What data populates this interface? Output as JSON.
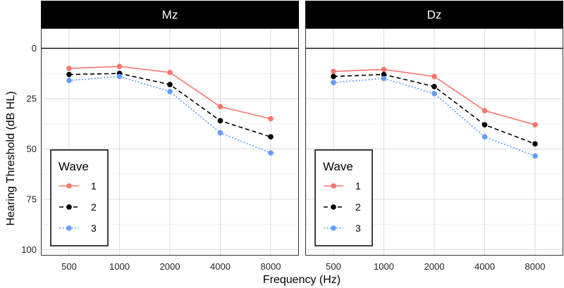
{
  "chart_data": {
    "type": "line",
    "xlabel": "Frequency (Hz)",
    "ylabel": "Hearing Threshold (dB HL)",
    "categories": [
      "500",
      "1000",
      "2000",
      "4000",
      "8000"
    ],
    "y_ticks": [
      0,
      25,
      50,
      75,
      100
    ],
    "y_tick_labels": [
      "0",
      "25",
      "50",
      "75",
      "100"
    ],
    "ylim": [
      -10,
      103
    ],
    "y_reversed": true,
    "reference_line": 0,
    "legend": {
      "title": "Wave",
      "placement": "bottom-left",
      "entries": [
        {
          "label": "1",
          "color": "#F8766D",
          "dash": "solid"
        },
        {
          "label": "2",
          "color": "#000000",
          "dash": "dashed"
        },
        {
          "label": "3",
          "color": "#619CFF",
          "dash": "dotted"
        }
      ]
    },
    "panels": [
      {
        "title": "Mz",
        "series": [
          {
            "name": "1",
            "values": [
              10,
              9,
              12,
              29,
              35
            ]
          },
          {
            "name": "2",
            "values": [
              13,
              12.5,
              18,
              36,
              44
            ]
          },
          {
            "name": "3",
            "values": [
              16,
              14,
              21.5,
              42,
              52
            ]
          }
        ]
      },
      {
        "title": "Dz",
        "series": [
          {
            "name": "1",
            "values": [
              11.5,
              10.5,
              14,
              31,
              38
            ]
          },
          {
            "name": "2",
            "values": [
              14,
              13,
              19,
              38,
              47.5
            ]
          },
          {
            "name": "3",
            "values": [
              17,
              15,
              22.5,
              44,
              53.5
            ]
          }
        ]
      }
    ]
  }
}
